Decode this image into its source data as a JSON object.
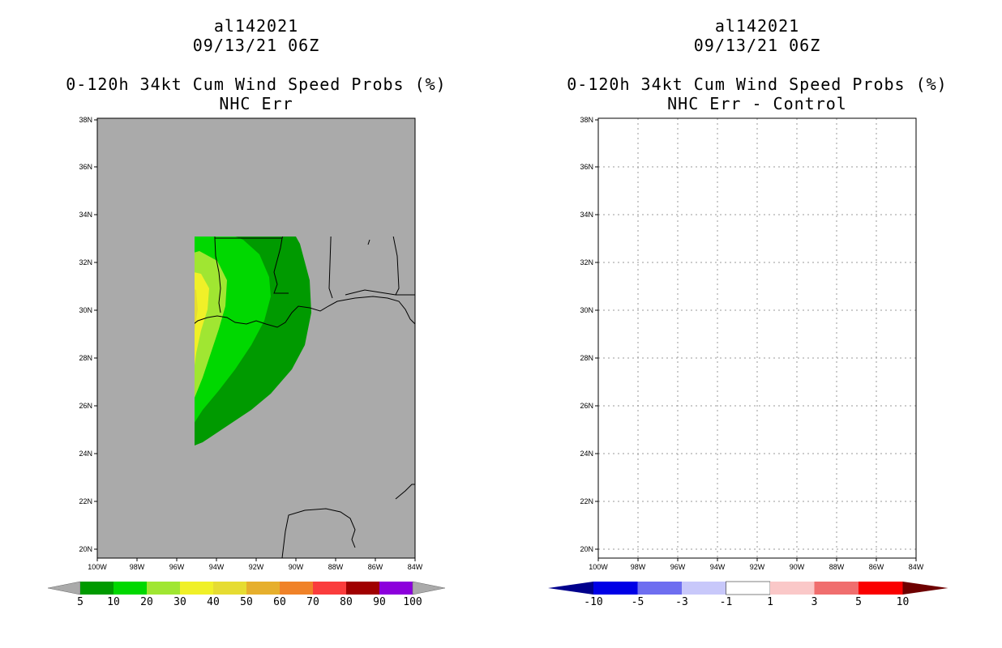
{
  "left_panel": {
    "storm_id": "al142021",
    "datetime": "09/13/21 06Z",
    "product": "0-120h 34kt Cum Wind Speed Probs (%)",
    "subtitle": "NHC Err",
    "colorbar": {
      "labels": [
        "5",
        "10",
        "20",
        "30",
        "40",
        "50",
        "60",
        "70",
        "80",
        "90",
        "100"
      ],
      "colors": [
        "#009a00",
        "#00d800",
        "#a0e632",
        "#f0f028",
        "#e6dc32",
        "#e6af2d",
        "#f08228",
        "#fa3c3c",
        "#a00000",
        "#8c00dc"
      ],
      "end_color": "#aaaaaa"
    }
  },
  "right_panel": {
    "storm_id": "al142021",
    "datetime": "09/13/21 06Z",
    "product": "0-120h 34kt Cum Wind Speed Probs (%)",
    "subtitle": "NHC Err - Control",
    "colorbar": {
      "labels": [
        "-10",
        "-5",
        "-3",
        "-1",
        "1",
        "3",
        "5",
        "10"
      ],
      "colors": [
        "#0000e6",
        "#6e6ef0",
        "#c8c8fa",
        "#ffffff",
        "#fac8c8",
        "#f06e6e",
        "#fa0000"
      ],
      "end_left": "#00008c",
      "end_right": "#6e0000"
    }
  },
  "axes": {
    "lat_labels": [
      "38N",
      "36N",
      "34N",
      "32N",
      "30N",
      "28N",
      "26N",
      "24N",
      "22N",
      "20N"
    ],
    "lon_labels": [
      "100W",
      "98W",
      "96W",
      "94W",
      "92W",
      "90W",
      "88W",
      "86W",
      "84W"
    ]
  }
}
